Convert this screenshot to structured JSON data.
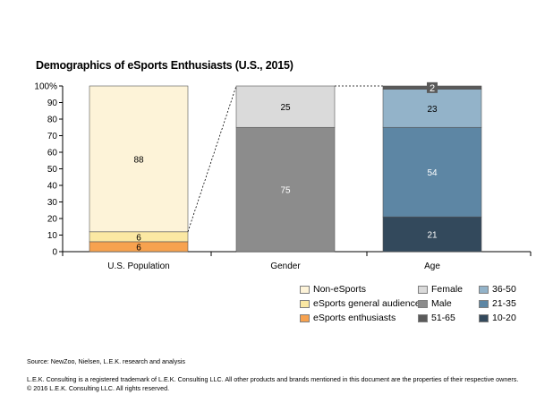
{
  "title": "Demographics of eSports Enthusiasts (U.S., 2015)",
  "source": "Source: NewZoo, Nielsen,  L.E.K. research and analysis",
  "footer": {
    "line1": "L.E.K. Consulting is a registered trademark of L.E.K. Consulting LLC. All other products and brands mentioned in this document are the properties of their respective owners.",
    "line2": "© 2016 L.E.K. Consulting LLC. All rights reserved."
  },
  "chart_data": {
    "type": "bar",
    "stacked": true,
    "ylim": [
      0,
      100
    ],
    "yticks": [
      "0",
      "10",
      "20",
      "30",
      "40",
      "50",
      "60",
      "70",
      "80",
      "90",
      "100%"
    ],
    "categories": [
      "U.S. Population",
      "Gender",
      "Age"
    ],
    "series": [
      {
        "name": "eSports enthusiasts",
        "category": "U.S. Population",
        "value": 6,
        "label": "6",
        "color": "#f7a24f"
      },
      {
        "name": "eSports general audience",
        "category": "U.S. Population",
        "value": 6,
        "label": "6",
        "color": "#fbe8a3"
      },
      {
        "name": "Non-eSports",
        "category": "U.S. Population",
        "value": 88,
        "label": "88",
        "color": "#fdf3d8"
      },
      {
        "name": "Male",
        "category": "Gender",
        "value": 75,
        "label": "75",
        "color": "#8c8c8c"
      },
      {
        "name": "Female",
        "category": "Gender",
        "value": 25,
        "label": "25",
        "color": "#dadada"
      },
      {
        "name": "10-20",
        "category": "Age",
        "value": 21,
        "label": "21",
        "color": "#33495c"
      },
      {
        "name": "21-35",
        "category": "Age",
        "value": 54,
        "label": "54",
        "color": "#5d86a4"
      },
      {
        "name": "36-50",
        "category": "Age",
        "value": 23,
        "label": "23",
        "color": "#93b3c9"
      },
      {
        "name": "51-65",
        "category": "Age",
        "value": 2,
        "label": "2",
        "color": "#5a5a5a"
      }
    ],
    "legend_columns": [
      [
        "Non-eSports",
        "eSports general audience",
        "eSports enthusiasts"
      ],
      [
        "Female",
        "Male",
        "51-65"
      ],
      [
        "36-50",
        "21-35",
        "10-20"
      ]
    ],
    "legend_position": "bottom-right"
  }
}
